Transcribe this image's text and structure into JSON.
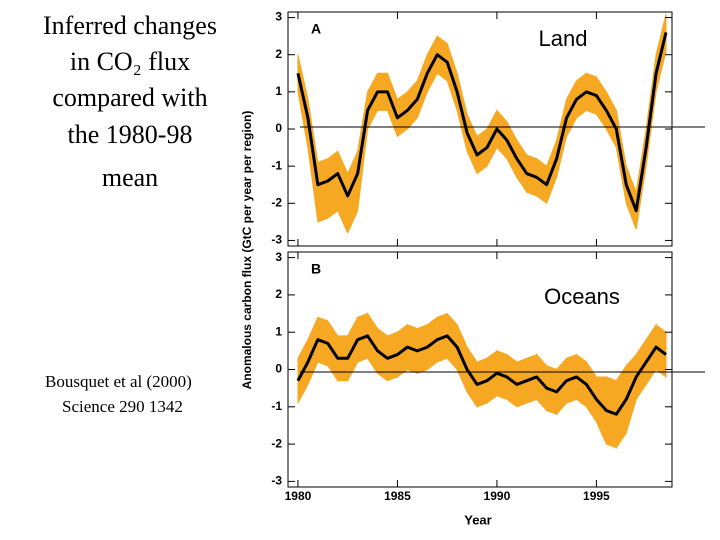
{
  "slide": {
    "title_lines": [
      "Inferred changes",
      "in CO₂ flux",
      "compared with",
      "the 1980-98",
      "mean"
    ],
    "citation_lines": [
      "Bousquet et al (2000)",
      "Science 290 1342"
    ]
  },
  "chart_data": [
    {
      "type": "line",
      "panel_label": "A",
      "title": "Land",
      "ylabel": "Anomalous carbon flux (GtC per year per region)",
      "x": [
        1980,
        1980.5,
        1981,
        1981.5,
        1982,
        1982.5,
        1983,
        1983.5,
        1984,
        1984.5,
        1985,
        1985.5,
        1986,
        1986.5,
        1987,
        1987.5,
        1988,
        1988.5,
        1989,
        1989.5,
        1990,
        1990.5,
        1991,
        1991.5,
        1992,
        1992.5,
        1993,
        1993.5,
        1994,
        1994.5,
        1995,
        1995.5,
        1996,
        1996.5,
        1997,
        1997.5,
        1998,
        1998.5
      ],
      "values": [
        1.5,
        0.3,
        -1.5,
        -1.4,
        -1.2,
        -1.8,
        -1.2,
        0.5,
        1.0,
        1.0,
        0.3,
        0.5,
        0.8,
        1.5,
        2.0,
        1.8,
        1.0,
        -0.1,
        -0.7,
        -0.5,
        0.0,
        -0.3,
        -0.8,
        -1.2,
        -1.3,
        -1.5,
        -0.8,
        0.3,
        0.8,
        1.0,
        0.9,
        0.5,
        0.0,
        -1.5,
        -2.2,
        -0.5,
        1.5,
        2.6
      ],
      "color": "#000000",
      "band": {
        "color": "#f7a823",
        "lower": [
          1.0,
          -0.5,
          -2.5,
          -2.4,
          -2.2,
          -2.8,
          -2.2,
          0.0,
          0.5,
          0.5,
          -0.2,
          0.0,
          0.3,
          1.0,
          1.5,
          1.3,
          0.5,
          -0.6,
          -1.2,
          -1.0,
          -0.5,
          -0.8,
          -1.3,
          -1.7,
          -1.8,
          -2.0,
          -1.3,
          -0.2,
          0.3,
          0.5,
          0.4,
          0.0,
          -0.5,
          -2.0,
          -2.7,
          -1.0,
          1.0,
          2.1
        ],
        "upper": [
          2.0,
          0.8,
          -0.9,
          -0.8,
          -0.6,
          -1.2,
          -0.6,
          1.0,
          1.5,
          1.5,
          0.8,
          1.0,
          1.3,
          2.0,
          2.5,
          2.3,
          1.5,
          0.4,
          -0.2,
          0.0,
          0.5,
          0.2,
          -0.3,
          -0.7,
          -0.8,
          -1.0,
          -0.3,
          0.8,
          1.3,
          1.5,
          1.4,
          1.0,
          0.5,
          -1.0,
          -1.7,
          0.0,
          2.0,
          3.1
        ]
      },
      "xlim": [
        1979.5,
        1998.8
      ],
      "xticks": [
        1980,
        1985,
        1990,
        1995
      ],
      "xtick_labels": false,
      "ylim": [
        -3.15,
        3.15
      ],
      "yticks": [
        -3,
        -2,
        -1,
        0,
        1,
        2,
        3
      ]
    },
    {
      "type": "line",
      "panel_label": "B",
      "title": "Oceans",
      "xlabel": "Year",
      "x": [
        1980,
        1980.5,
        1981,
        1981.5,
        1982,
        1982.5,
        1983,
        1983.5,
        1984,
        1984.5,
        1985,
        1985.5,
        1986,
        1986.5,
        1987,
        1987.5,
        1988,
        1988.5,
        1989,
        1989.5,
        1990,
        1990.5,
        1991,
        1991.5,
        1992,
        1992.5,
        1993,
        1993.5,
        1994,
        1994.5,
        1995,
        1995.5,
        1996,
        1996.5,
        1997,
        1997.5,
        1998,
        1998.5
      ],
      "values": [
        -0.3,
        0.2,
        0.8,
        0.7,
        0.3,
        0.3,
        0.8,
        0.9,
        0.5,
        0.3,
        0.4,
        0.6,
        0.5,
        0.6,
        0.8,
        0.9,
        0.6,
        0.0,
        -0.4,
        -0.3,
        -0.1,
        -0.2,
        -0.4,
        -0.3,
        -0.2,
        -0.5,
        -0.6,
        -0.3,
        -0.2,
        -0.4,
        -0.8,
        -1.1,
        -1.2,
        -0.8,
        -0.2,
        0.2,
        0.6,
        0.4
      ],
      "color": "#000000",
      "band": {
        "color": "#f7a823",
        "lower": [
          -0.9,
          -0.4,
          0.2,
          0.1,
          -0.3,
          -0.3,
          0.2,
          0.3,
          -0.1,
          -0.3,
          -0.2,
          0.0,
          -0.1,
          0.0,
          0.2,
          0.3,
          0.0,
          -0.6,
          -1.0,
          -0.9,
          -0.7,
          -0.8,
          -1.0,
          -0.9,
          -0.8,
          -1.1,
          -1.2,
          -0.9,
          -0.8,
          -1.0,
          -1.4,
          -2.0,
          -2.1,
          -1.7,
          -0.8,
          -0.4,
          0.0,
          -0.2
        ],
        "upper": [
          0.3,
          0.8,
          1.4,
          1.3,
          0.9,
          0.9,
          1.4,
          1.5,
          1.1,
          0.9,
          1.0,
          1.2,
          1.1,
          1.2,
          1.4,
          1.5,
          1.2,
          0.6,
          0.2,
          0.3,
          0.5,
          0.4,
          0.2,
          0.3,
          0.4,
          0.1,
          0.0,
          0.3,
          0.4,
          0.2,
          -0.2,
          -0.2,
          -0.3,
          0.1,
          0.4,
          0.8,
          1.2,
          1.0
        ]
      },
      "xlim": [
        1979.5,
        1998.8
      ],
      "xticks": [
        1980,
        1985,
        1990,
        1995
      ],
      "xtick_labels": true,
      "ylim": [
        -3.15,
        3.15
      ],
      "yticks": [
        -3,
        -2,
        -1,
        0,
        1,
        2,
        3
      ]
    }
  ]
}
